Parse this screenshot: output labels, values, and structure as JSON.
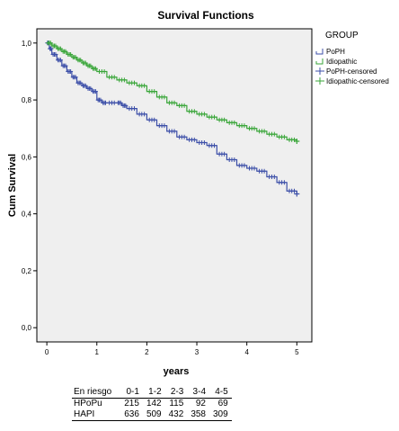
{
  "chart_data": {
    "type": "line",
    "title": "Survival Functions",
    "xlabel": "years",
    "ylabel": "Cum Survival",
    "xlim": [
      -0.2,
      5.3
    ],
    "ylim": [
      -0.05,
      1.05
    ],
    "x_ticks": [
      0,
      1,
      2,
      3,
      4,
      5
    ],
    "x_tick_labels": [
      "0",
      "1",
      "2",
      "3",
      "4",
      "5"
    ],
    "y_ticks": [
      0.0,
      0.2,
      0.4,
      0.6,
      0.8,
      1.0
    ],
    "y_tick_labels": [
      "0,0",
      "0,2",
      "0,4",
      "0,6",
      "0,8",
      "1,0"
    ],
    "grid": false,
    "legend_title": "GROUP",
    "legend_position": "right",
    "legend": [
      "PoPH",
      "Idiopathic",
      "PoPH-censored",
      "Idiopathic-censored"
    ],
    "series": [
      {
        "name": "PoPH",
        "color": "#3c4fa8",
        "x": [
          0,
          0.05,
          0.1,
          0.2,
          0.3,
          0.4,
          0.5,
          0.6,
          0.7,
          0.8,
          0.9,
          1.0,
          1.1,
          1.2,
          1.4,
          1.5,
          1.6,
          1.8,
          2.0,
          2.2,
          2.4,
          2.6,
          2.8,
          3.0,
          3.2,
          3.4,
          3.6,
          3.8,
          4.0,
          4.2,
          4.4,
          4.6,
          4.8,
          5.0
        ],
        "y": [
          1.0,
          0.98,
          0.96,
          0.94,
          0.92,
          0.9,
          0.88,
          0.86,
          0.85,
          0.84,
          0.83,
          0.8,
          0.79,
          0.79,
          0.79,
          0.78,
          0.77,
          0.75,
          0.73,
          0.71,
          0.69,
          0.67,
          0.66,
          0.65,
          0.64,
          0.61,
          0.59,
          0.57,
          0.56,
          0.55,
          0.53,
          0.51,
          0.48,
          0.47
        ]
      },
      {
        "name": "Idiopathic",
        "color": "#3aa63a",
        "x": [
          0,
          0.1,
          0.2,
          0.3,
          0.4,
          0.5,
          0.6,
          0.7,
          0.8,
          0.9,
          1.0,
          1.2,
          1.4,
          1.6,
          1.8,
          2.0,
          2.2,
          2.4,
          2.6,
          2.8,
          3.0,
          3.2,
          3.4,
          3.6,
          3.8,
          4.0,
          4.2,
          4.4,
          4.6,
          4.8,
          5.0
        ],
        "y": [
          1.0,
          0.99,
          0.98,
          0.97,
          0.96,
          0.95,
          0.94,
          0.93,
          0.92,
          0.91,
          0.9,
          0.88,
          0.87,
          0.86,
          0.85,
          0.83,
          0.81,
          0.79,
          0.78,
          0.76,
          0.75,
          0.74,
          0.73,
          0.72,
          0.71,
          0.7,
          0.69,
          0.68,
          0.67,
          0.66,
          0.655
        ]
      }
    ],
    "risk_table": {
      "header_label": "En riesgo",
      "intervals": [
        "0-1",
        "1-2",
        "2-3",
        "3-4",
        "4-5"
      ],
      "rows": [
        {
          "label": "HPoPu",
          "values": [
            "215",
            "142",
            "115",
            "92",
            "69"
          ]
        },
        {
          "label": "HAPI",
          "values": [
            "636",
            "509",
            "432",
            "358",
            "309"
          ]
        }
      ]
    }
  }
}
